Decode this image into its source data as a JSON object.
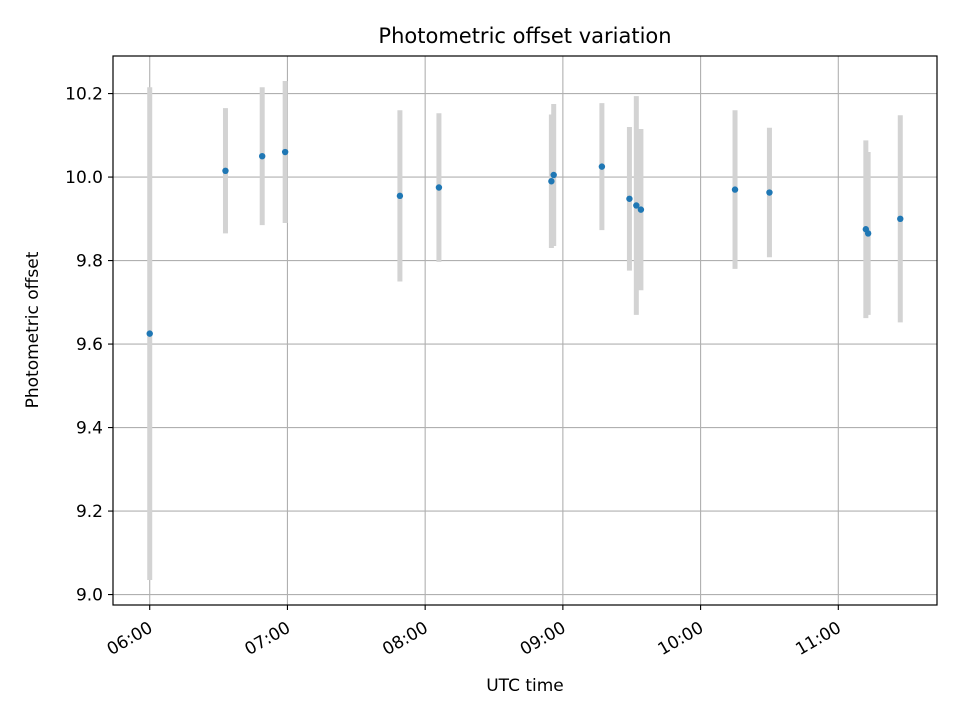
{
  "chart_data": {
    "type": "scatter",
    "title": "Photometric offset variation",
    "xlabel": "UTC time",
    "ylabel": "Photometric offset",
    "x_ticks": [
      "06:00",
      "07:00",
      "08:00",
      "09:00",
      "10:00",
      "11:00"
    ],
    "y_ticks": [
      "9.0",
      "9.2",
      "9.4",
      "9.6",
      "9.8",
      "10.0",
      "10.2"
    ],
    "xlim": [
      "05:44",
      "11:43"
    ],
    "ylim": [
      8.975,
      10.29
    ],
    "grid": true,
    "marker_color": "#1f77b4",
    "errorbar_color": "#d3d3d3",
    "points": [
      {
        "time": "06:00",
        "y": 9.625,
        "err": 0.59
      },
      {
        "time": "06:33",
        "y": 10.015,
        "err": 0.15
      },
      {
        "time": "06:49",
        "y": 10.05,
        "err": 0.165
      },
      {
        "time": "06:59",
        "y": 10.06,
        "err": 0.17
      },
      {
        "time": "07:49",
        "y": 9.955,
        "err": 0.205
      },
      {
        "time": "08:06",
        "y": 9.975,
        "err": 0.178
      },
      {
        "time": "08:55",
        "y": 9.99,
        "err": 0.16
      },
      {
        "time": "08:56",
        "y": 10.005,
        "err": 0.17
      },
      {
        "time": "09:17",
        "y": 10.025,
        "err": 0.152
      },
      {
        "time": "09:29",
        "y": 9.948,
        "err": 0.172
      },
      {
        "time": "09:32",
        "y": 9.932,
        "err": 0.262
      },
      {
        "time": "09:34",
        "y": 9.922,
        "err": 0.193
      },
      {
        "time": "10:15",
        "y": 9.97,
        "err": 0.19
      },
      {
        "time": "10:30",
        "y": 9.963,
        "err": 0.155
      },
      {
        "time": "11:12",
        "y": 9.875,
        "err": 0.213
      },
      {
        "time": "11:13",
        "y": 9.865,
        "err": 0.195
      },
      {
        "time": "11:27",
        "y": 9.9,
        "err": 0.248
      }
    ]
  }
}
